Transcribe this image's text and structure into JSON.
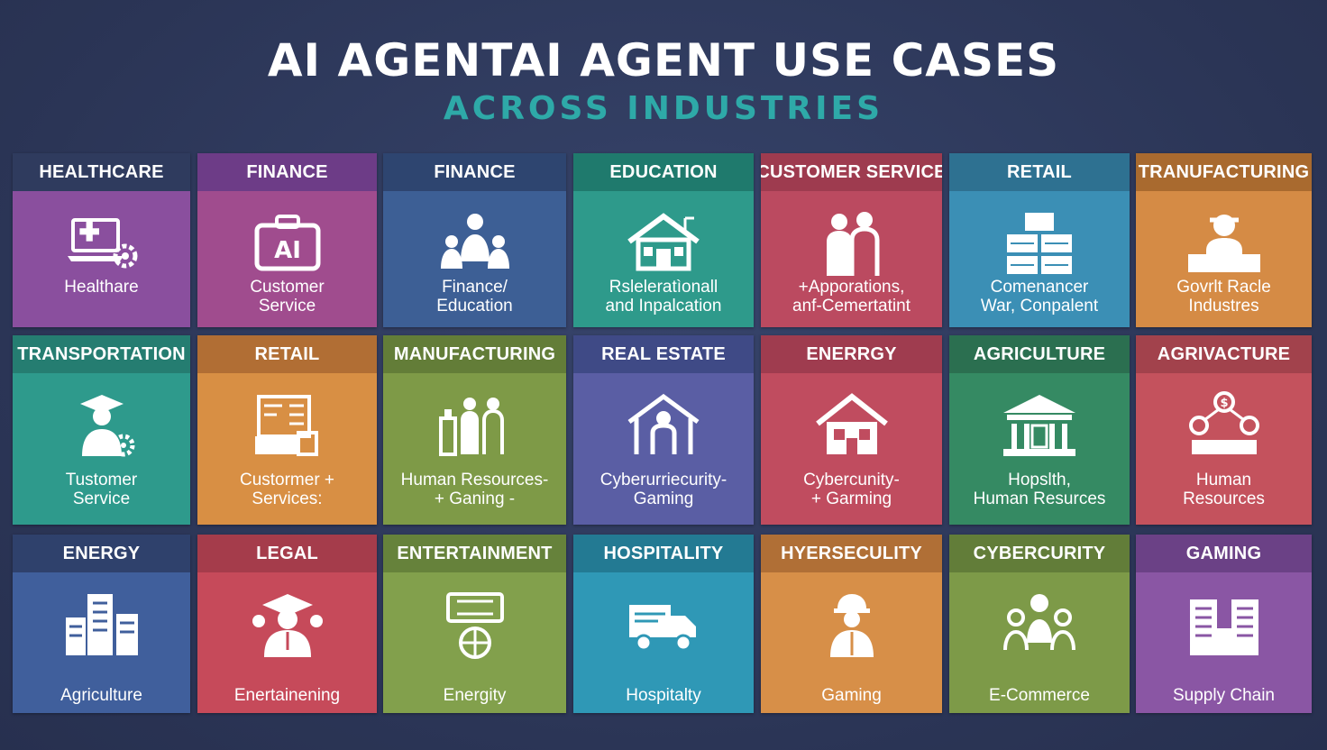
{
  "header": {
    "title": "AI AGENTAI AGENT USE CASES",
    "subtitle": "ACROSS INDUSTRIES"
  },
  "tiles": [
    {
      "header": "HEALTHCARE",
      "label": "Healthare",
      "icon": "laptop-medical-icon",
      "body_color": "#8a4f9e",
      "head_color": "#2f3b5e"
    },
    {
      "header": "FINANCE",
      "label": "Customer\nService",
      "icon": "ai-briefcase-icon",
      "body_color": "#a04c8e",
      "head_color": "#6d3c87"
    },
    {
      "header": "FINANCE",
      "label": "Finance/\nEducation",
      "icon": "people-group-icon",
      "body_color": "#3d5f95",
      "head_color": "#2e4570"
    },
    {
      "header": "EDUCATION",
      "label": "Rsleleratìonall\nand Inpalcation",
      "icon": "school-house-icon",
      "body_color": "#2e9a8b",
      "head_color": "#1f7a6d"
    },
    {
      "header": "CUSTOMER SERVICE",
      "label": "+Apporations,\nanf-Cemertatint",
      "icon": "two-people-icon",
      "body_color": "#bb4a60",
      "head_color": "#9e3b4f"
    },
    {
      "header": "RETAIL",
      "label": "Comenancer\nWar, Conpalent",
      "icon": "stacked-boxes-icon",
      "body_color": "#3b8fb5",
      "head_color": "#2e7191"
    },
    {
      "header": "TRANUFACTURING",
      "label": "Govrlt Racle\nIndustres",
      "icon": "worker-crates-icon",
      "body_color": "#d58b45",
      "head_color": "#a96a2f"
    },
    {
      "header": "TRANSPORTATION",
      "label": "Tustomer\nService",
      "icon": "graduate-gear-icon",
      "body_color": "#2e9a8c",
      "head_color": "#257d71"
    },
    {
      "header": "RETAIL",
      "label": "Custormer +\nServices:",
      "icon": "store-display-icon",
      "body_color": "#d88f44",
      "head_color": "#b16e34"
    },
    {
      "header": "MANUFACTURING",
      "label": "Human Resources-\n+ Ganing -",
      "icon": "factory-workers-icon",
      "body_color": "#7e9a47",
      "head_color": "#637d38"
    },
    {
      "header": "REAL ESTATE",
      "label": "Cyberurriecurity-\nGaming",
      "icon": "house-figure-icon",
      "body_color": "#5a5ea4",
      "head_color": "#3f4a86"
    },
    {
      "header": "ENERRGY",
      "label": "Cybercunity-\n+ Garming",
      "icon": "house-icon",
      "body_color": "#c04c5f",
      "head_color": "#9f3c4f"
    },
    {
      "header": "AGRICULTURE",
      "label": "Hopslth,\nHuman Resurces",
      "icon": "bank-building-icon",
      "body_color": "#358a63",
      "head_color": "#2b6f50"
    },
    {
      "header": "AGRIVACTURE",
      "label": "Human\nResources",
      "icon": "network-people-icon",
      "body_color": "#c4525d",
      "head_color": "#a2424c"
    },
    {
      "header": "ENERGY",
      "label": "Agriculture",
      "icon": "city-buildings-icon",
      "body_color": "#405f9c",
      "head_color": "#2f416c"
    },
    {
      "header": "LEGAL",
      "label": "Enertainening",
      "icon": "graduate-lawyer-icon",
      "body_color": "#c64a5a",
      "head_color": "#a53c4b"
    },
    {
      "header": "ENTERTAINMENT",
      "label": "Energity",
      "icon": "film-globe-icon",
      "body_color": "#82a04c",
      "head_color": "#66823b"
    },
    {
      "header": "HOSPITALITY",
      "label": "Hospitalty",
      "icon": "delivery-truck-icon",
      "body_color": "#2f98b6",
      "head_color": "#237a93"
    },
    {
      "header": "HYERSECULITY",
      "label": "Gaming",
      "icon": "hardhat-worker-icon",
      "body_color": "#d78f48",
      "head_color": "#b06f36"
    },
    {
      "header": "CYBERCURITY",
      "label": "E-Commerce",
      "icon": "team-people-icon",
      "body_color": "#7d9a48",
      "head_color": "#627d39"
    },
    {
      "header": "GAMING",
      "label": "Supply Chain",
      "icon": "office-building-icon",
      "body_color": "#8a56a4",
      "head_color": "#6b4186"
    }
  ]
}
